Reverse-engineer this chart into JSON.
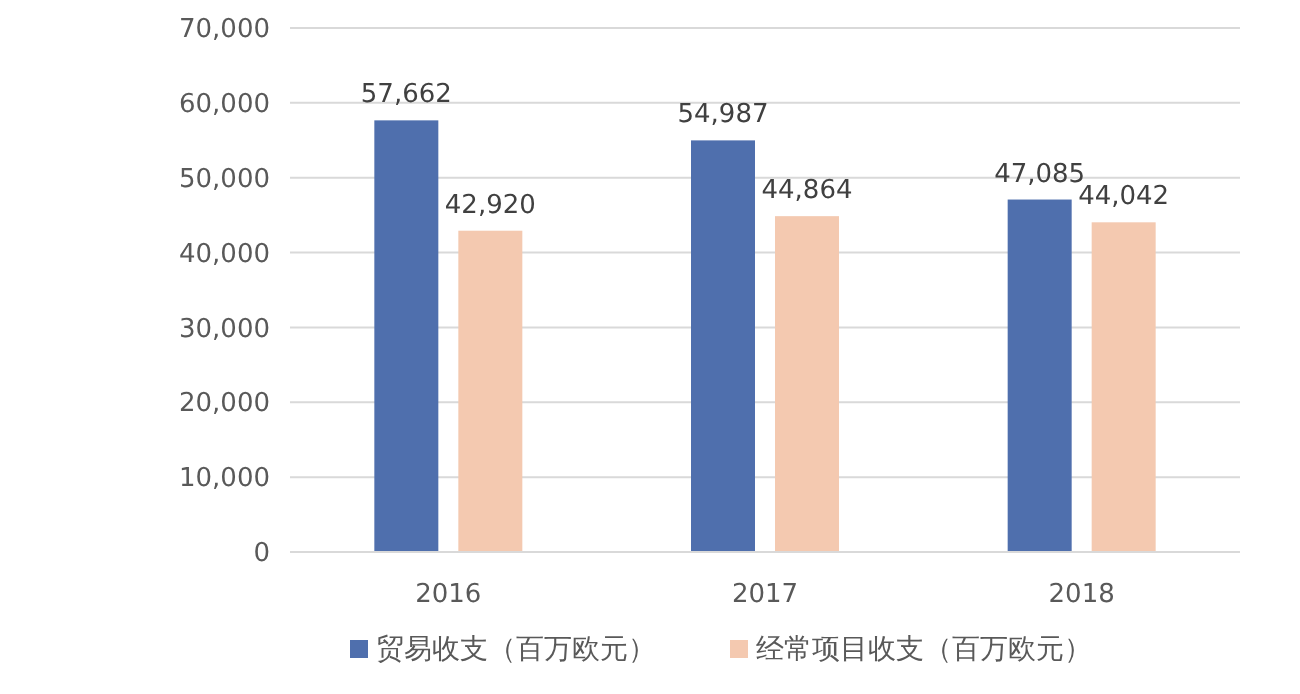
{
  "chart_data": {
    "type": "bar",
    "categories": [
      "2016",
      "2017",
      "2018"
    ],
    "series": [
      {
        "name": "贸易收支（百万欧元）",
        "color": "#4f6fad",
        "values": [
          57662,
          54987,
          47085
        ],
        "value_labels": [
          "57,662",
          "54,987",
          "47,085"
        ]
      },
      {
        "name": "经常项目收支（百万欧元）",
        "color": "#f4c9b0",
        "values": [
          42920,
          44864,
          44042
        ],
        "value_labels": [
          "42,920",
          "44,864",
          "44,042"
        ]
      }
    ],
    "ylim": [
      0,
      70000
    ],
    "yticks": [
      {
        "value": 0,
        "label": "0"
      },
      {
        "value": 10000,
        "label": "10,000"
      },
      {
        "value": 20000,
        "label": "20,000"
      },
      {
        "value": 30000,
        "label": "30,000"
      },
      {
        "value": 40000,
        "label": "40,000"
      },
      {
        "value": 50000,
        "label": "50,000"
      },
      {
        "value": 60000,
        "label": "60,000"
      },
      {
        "value": 70000,
        "label": "70,000"
      }
    ],
    "grid": "y",
    "legend": "bottom"
  }
}
